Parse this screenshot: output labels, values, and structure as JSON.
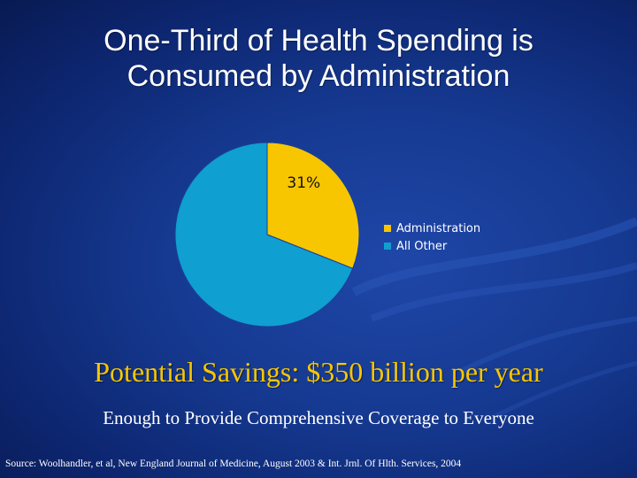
{
  "title": {
    "line1": "One-Third of Health Spending is",
    "line2": "Consumed by Administration"
  },
  "colors": {
    "administration": "#f7c600",
    "all_other": "#0f9fd1",
    "subtitle": "#f7c600"
  },
  "chart_data": {
    "type": "pie",
    "title": "",
    "categories": [
      "Administration",
      "All Other"
    ],
    "values": [
      31,
      69
    ],
    "data_labels": [
      "31%",
      ""
    ],
    "legend_position": "right"
  },
  "subtitle": "Potential Savings: $350 billion per year",
  "tagline": "Enough to Provide Comprehensive Coverage to Everyone",
  "source": "Source: Woolhandler, et al, New England Journal of Medicine, August 2003 & Int. Jrnl. Of Hlth. Services, 2004"
}
